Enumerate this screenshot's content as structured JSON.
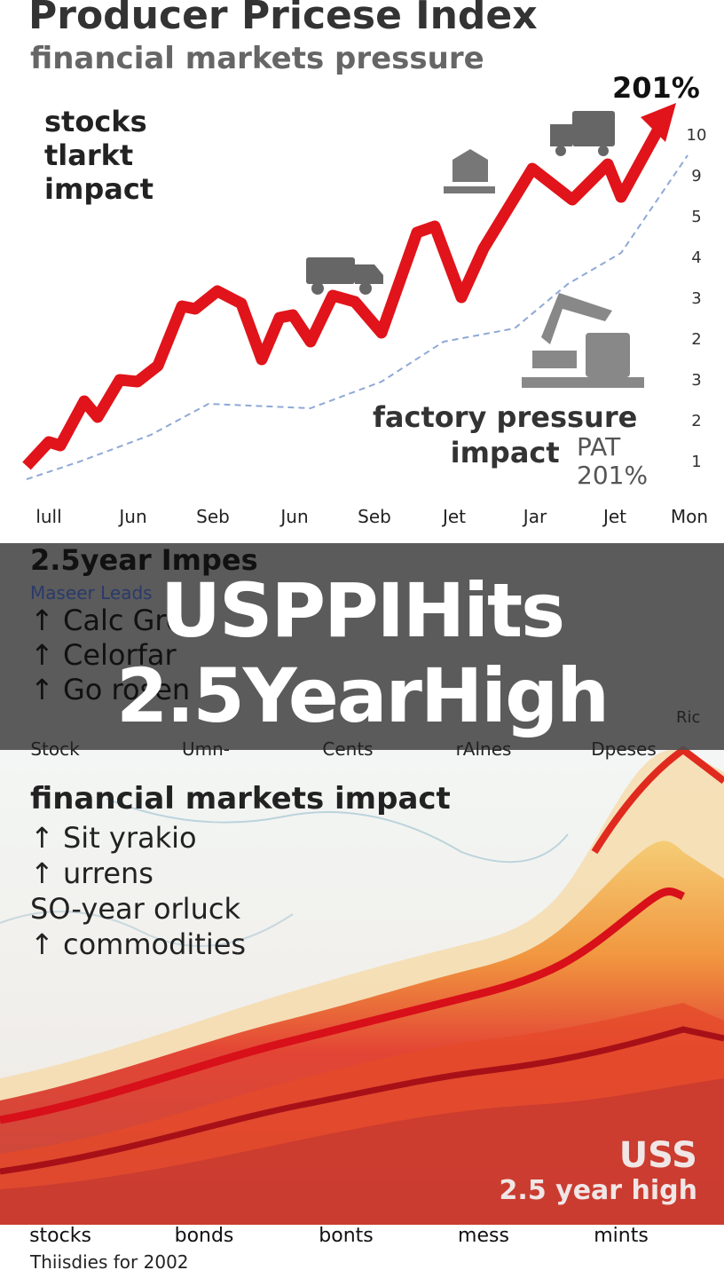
{
  "header": {
    "title": "Producer Pricese Index",
    "subtitle": "financial markets pressure"
  },
  "top_chart": {
    "peak_label": "201%",
    "left_note": [
      "stocks",
      "tlarkt",
      "impact"
    ],
    "right_labels": [
      "10",
      "9",
      "5",
      "4",
      "3",
      "2",
      "3",
      "2",
      "1"
    ],
    "factory_note": [
      "factory pressure",
      "impact"
    ],
    "pat_note": [
      "PAT",
      "201%"
    ],
    "x_labels": [
      "lull",
      "Jun",
      "Seb",
      "Jun",
      "Seb",
      "Jet",
      "Jar",
      "Jet",
      "Mon"
    ]
  },
  "banner": {
    "headline": [
      "USPPIHits",
      "2.5YearHigh"
    ],
    "left_title": "2.5year Impes",
    "left_sub": "Maseer Leads",
    "items": [
      "↑ Calc Gro",
      "↑ Celorfar",
      "↑ Go rosen"
    ],
    "divider_labels": [
      "Stock",
      "Umn-",
      "Cents",
      "rAlnes",
      "Dpeses"
    ],
    "corner_label": "Ric"
  },
  "bottom": {
    "title": "financial markets impact",
    "items": [
      "↑ Sit yrakio",
      "↑ urrens",
      "SO-year orluck",
      "↑ commodities"
    ],
    "badge": [
      "USS",
      "2.5 year high"
    ],
    "x_labels": [
      "stocks",
      "bonds",
      "bonts",
      "mess",
      "mints"
    ],
    "footer": "Thiisdies for 2002"
  }
}
